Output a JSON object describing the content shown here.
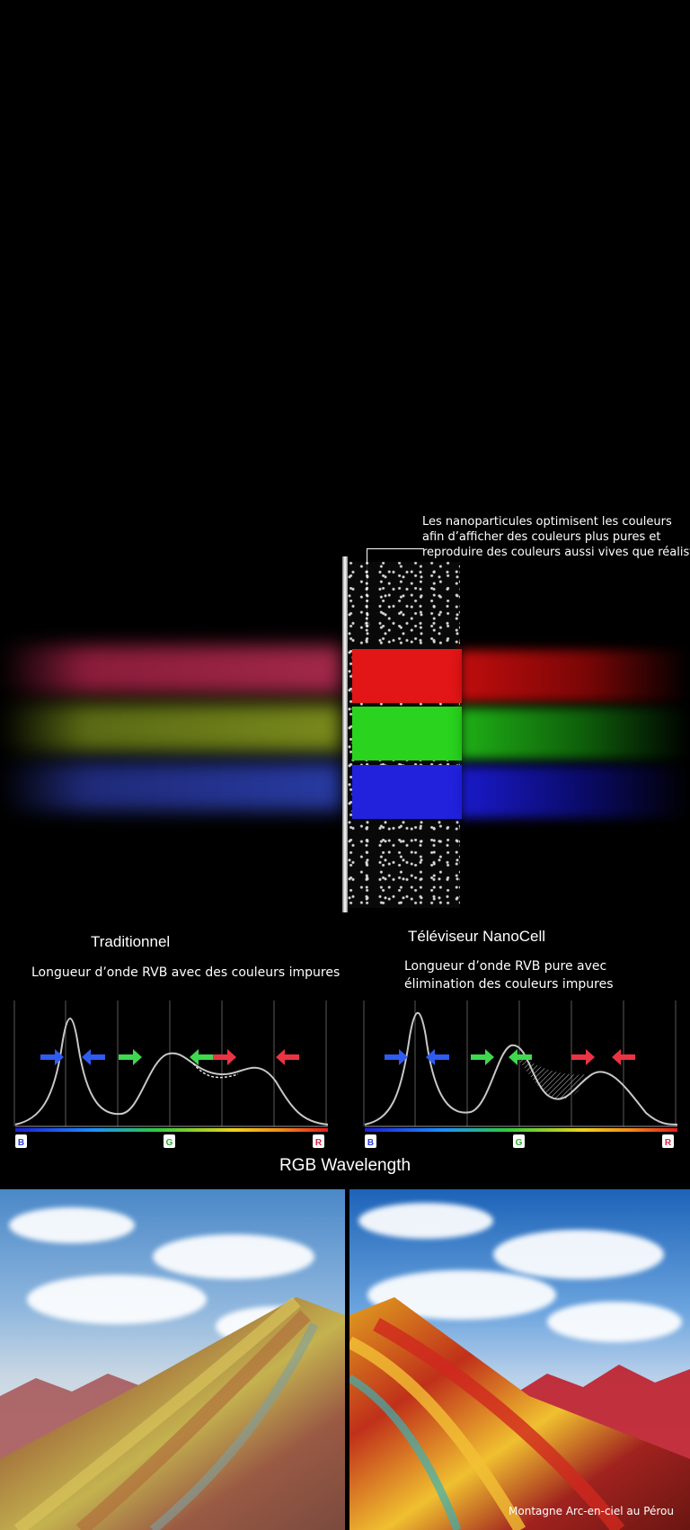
{
  "callout": {
    "line1": "Les nanoparticules optimisent les couleurs",
    "line2": "afin d’afficher des couleurs plus pures et",
    "line3": "reproduire des couleurs aussi vives que réalistes."
  },
  "comparison": {
    "traditional": {
      "title": "Traditionnel",
      "subtitle": "Longueur d’onde RVB avec des couleurs impures"
    },
    "nanocell": {
      "title": "Téléviseur NanoCell",
      "subtitle_line1": "Longueur d’onde RVB pure avec",
      "subtitle_line2": "élimination des couleurs impures"
    },
    "axis_labels": {
      "b": "B",
      "g": "G",
      "r": "R"
    },
    "axis_label_colors": {
      "b": "#2a3fd6",
      "g": "#2eaa2e",
      "r": "#d6283a"
    },
    "arrow_colors": {
      "blue": "#2e5cf0",
      "green": "#3fd94f",
      "red": "#ea3444"
    },
    "footer": "RGB Wavelength"
  },
  "landscape": {
    "caption": "Montagne Arc-en-ciel au Pérou"
  }
}
